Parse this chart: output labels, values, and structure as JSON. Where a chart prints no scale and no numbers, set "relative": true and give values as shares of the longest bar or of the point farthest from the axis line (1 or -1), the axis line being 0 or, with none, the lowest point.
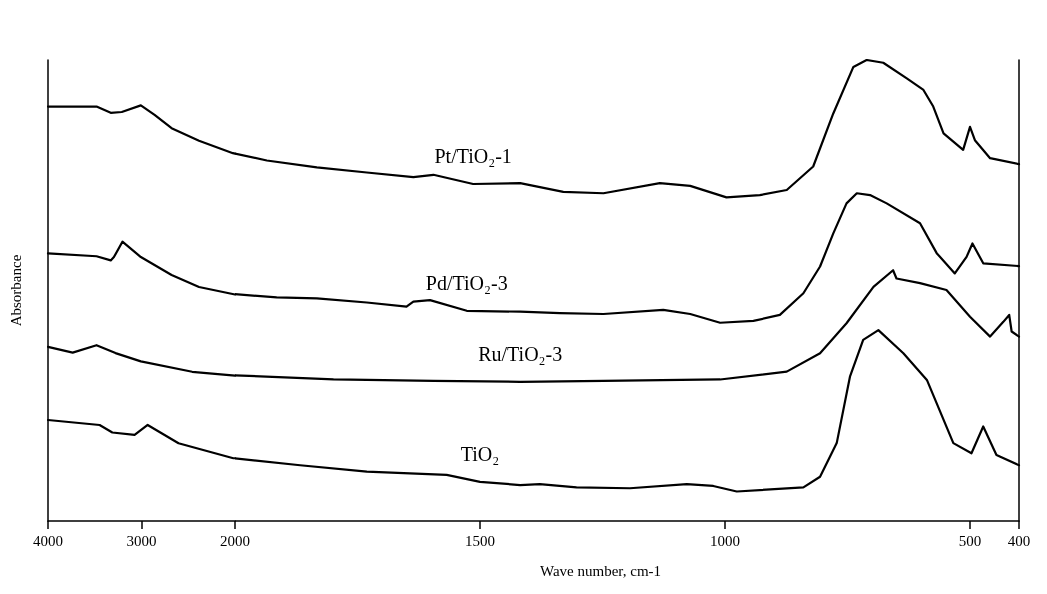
{
  "chart_data": [
    {
      "type": "line",
      "relative": true,
      "ylabel": "Absorbance",
      "xlim": [
        4000,
        2000
      ],
      "xticks": [
        4000,
        3000,
        2000
      ],
      "grid": false,
      "series": [
        {
          "color": "#000000",
          "x": [
            4000,
            3481,
            3329,
            3211,
            3007,
            2860,
            2678,
            2385,
            2022,
            2000
          ],
          "values": [
            0.997,
            0.997,
            0.982,
            0.984,
            1.0,
            0.977,
            0.945,
            0.915,
            0.885,
            0.884
          ]
        },
        {
          "color": "#000000",
          "x": [
            4000,
            3481,
            3329,
            3295,
            3204,
            3007,
            2678,
            2385,
            2000
          ],
          "values": [
            0.644,
            0.637,
            0.627,
            0.635,
            0.672,
            0.635,
            0.592,
            0.563,
            0.545
          ]
        },
        {
          "color": "#000000",
          "x": [
            4000,
            3736,
            3481,
            3278,
            3007,
            2458,
            2000
          ],
          "values": [
            0.419,
            0.405,
            0.423,
            0.404,
            0.384,
            0.359,
            0.35
          ]
        },
        {
          "color": "#000000",
          "x": [
            4000,
            3448,
            3312,
            3074,
            2934,
            2604,
            2018,
            2000
          ],
          "values": [
            0.243,
            0.231,
            0.213,
            0.207,
            0.231,
            0.187,
            0.151,
            0.151
          ]
        }
      ]
    },
    {
      "type": "line",
      "relative": true,
      "xlabel": "Wave number, cm-1",
      "xlim": [
        2000,
        400
      ],
      "xticks": [
        1500,
        1000,
        500,
        400
      ],
      "grid": false,
      "series": [
        {
          "name": "Pt/TiO₂-1",
          "color": "#000000",
          "x": [
            2000,
            1935,
            1833,
            1731,
            1636,
            1595,
            1514,
            1418,
            1330,
            1248,
            1133,
            1071,
            997,
            929,
            874,
            820,
            779,
            738,
            711,
            677,
            629,
            595,
            575,
            554,
            514,
            500,
            490,
            459,
            400
          ],
          "values": [
            0.797,
            0.782,
            0.767,
            0.756,
            0.746,
            0.751,
            0.731,
            0.733,
            0.714,
            0.711,
            0.733,
            0.727,
            0.702,
            0.707,
            0.718,
            0.769,
            0.884,
            0.985,
            1.0,
            0.994,
            0.96,
            0.935,
            0.899,
            0.841,
            0.805,
            0.855,
            0.826,
            0.787,
            0.774
          ]
        },
        {
          "name": "Pd/TiO₂-3",
          "color": "#000000",
          "x": [
            2000,
            1915,
            1833,
            1731,
            1650,
            1636,
            1602,
            1527,
            1418,
            1337,
            1248,
            1126,
            1071,
            1010,
            942,
            888,
            840,
            806,
            779,
            752,
            731,
            704,
            670,
            602,
            568,
            531,
            507,
            495,
            473,
            400
          ],
          "values": [
            0.492,
            0.485,
            0.483,
            0.474,
            0.465,
            0.476,
            0.479,
            0.456,
            0.454,
            0.451,
            0.449,
            0.458,
            0.449,
            0.43,
            0.434,
            0.447,
            0.494,
            0.552,
            0.624,
            0.689,
            0.711,
            0.707,
            0.689,
            0.646,
            0.581,
            0.537,
            0.573,
            0.602,
            0.559,
            0.553
          ]
        },
        {
          "name": "Ru/TiO₂-3",
          "color": "#000000",
          "x": [
            2000,
            1799,
            1595,
            1418,
            1248,
            1010,
            874,
            806,
            752,
            697,
            657,
            650,
            602,
            548,
            500,
            459,
            432,
            420,
            415,
            400
          ],
          "values": [
            0.316,
            0.307,
            0.304,
            0.302,
            0.304,
            0.307,
            0.324,
            0.364,
            0.429,
            0.508,
            0.544,
            0.526,
            0.516,
            0.501,
            0.443,
            0.4,
            0.432,
            0.447,
            0.411,
            0.4
          ]
        },
        {
          "name": "TiO₂",
          "color": "#000000",
          "x": [
            2000,
            1867,
            1731,
            1568,
            1500,
            1418,
            1378,
            1303,
            1194,
            1078,
            1024,
            976,
            840,
            806,
            772,
            745,
            718,
            687,
            636,
            588,
            534,
            497,
            473,
            446,
            400
          ],
          "values": [
            0.136,
            0.121,
            0.107,
            0.1,
            0.085,
            0.078,
            0.08,
            0.073,
            0.071,
            0.08,
            0.076,
            0.064,
            0.073,
            0.096,
            0.169,
            0.313,
            0.393,
            0.414,
            0.364,
            0.306,
            0.169,
            0.147,
            0.205,
            0.143,
            0.121
          ]
        }
      ]
    }
  ]
}
